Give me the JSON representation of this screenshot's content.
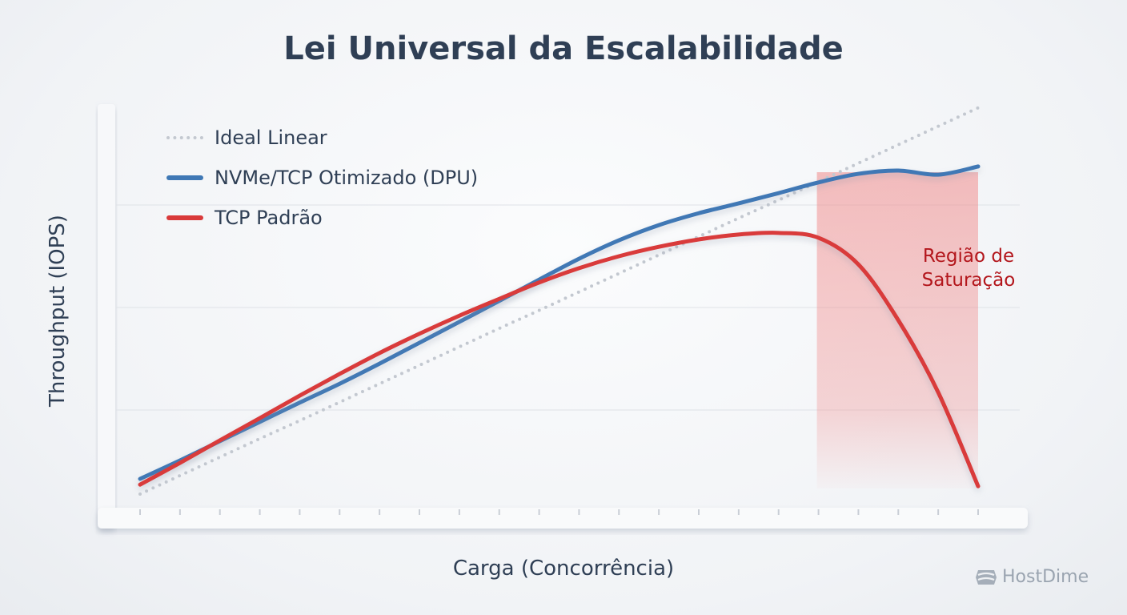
{
  "chart_data": {
    "type": "line",
    "title": "Lei Universal da Escalabilidade",
    "xlabel": "Carga (Concorrência)",
    "ylabel": "Throughput (IOPS)",
    "x": [
      0,
      1,
      2,
      3,
      4,
      5,
      6,
      7,
      8,
      9,
      10,
      11,
      12,
      13,
      14,
      15,
      16,
      17,
      18,
      19,
      20,
      21
    ],
    "ylim": [
      0,
      100
    ],
    "xlim": [
      0,
      21
    ],
    "grid": {
      "horizontal": true,
      "values": [
        25,
        50,
        75
      ]
    },
    "legend": "top-left",
    "series": [
      {
        "name": "Ideal Linear",
        "style": "dotted",
        "color": "#c3c8d0",
        "values": [
          4.5,
          9.0,
          13.5,
          18.0,
          22.4,
          26.9,
          31.4,
          35.9,
          40.4,
          44.9,
          49.3,
          53.8,
          58.3,
          62.8,
          67.3,
          71.8,
          76.2,
          80.7,
          85.2,
          89.7,
          94.2,
          98.7
        ]
      },
      {
        "name": "NVMe/TCP Otimizado (DPU)",
        "style": "solid",
        "color": "#3f78b5",
        "values": [
          8.2,
          12.7,
          17.4,
          22.1,
          26.8,
          31.4,
          36.3,
          41.4,
          46.5,
          51.6,
          56.8,
          61.9,
          66.4,
          70.1,
          73.0,
          75.4,
          77.9,
          80.5,
          82.6,
          83.4,
          82.4,
          84.4
        ]
      },
      {
        "name": "TCP Padrão",
        "style": "solid",
        "color": "#d93a3a",
        "values": [
          6.8,
          12.1,
          17.6,
          23.0,
          28.5,
          33.8,
          38.9,
          43.6,
          48.0,
          52.1,
          56.1,
          59.6,
          62.5,
          64.8,
          66.6,
          67.8,
          68.2,
          67.0,
          60.5,
          46.9,
          29.3,
          6.4
        ]
      }
    ],
    "annotations": [
      {
        "text_lines": [
          "Região de",
          "Saturação"
        ],
        "color": "#b3161c",
        "shaded_x_range": [
          17,
          21
        ],
        "shade_color": "#f08080"
      }
    ]
  },
  "branding": {
    "logo_text": "HostDime"
  }
}
